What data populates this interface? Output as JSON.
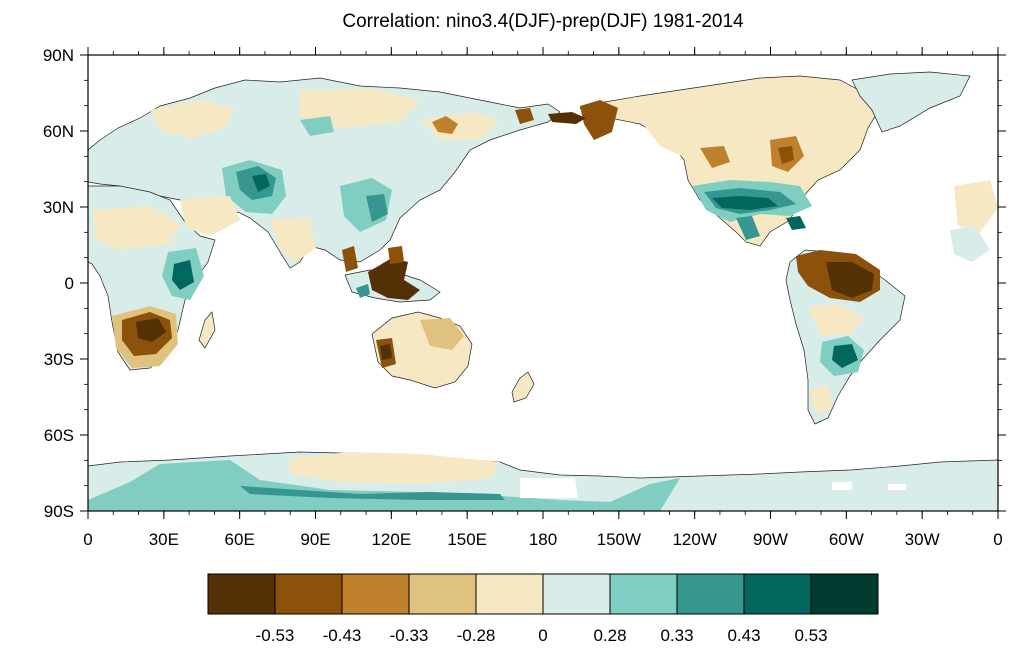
{
  "title": "Correlation: nino3.4(DJF)-prep(DJF) 1981-2014",
  "map": {
    "lon_ticks": [
      "0",
      "30E",
      "60E",
      "90E",
      "120E",
      "150E",
      "180",
      "150W",
      "120W",
      "90W",
      "60W",
      "30W",
      "0"
    ],
    "lat_ticks": [
      "90N",
      "60N",
      "30N",
      "0",
      "30S",
      "60S",
      "90S"
    ]
  },
  "colorbar": {
    "colors": [
      "#543005",
      "#8c510a",
      "#bf812d",
      "#dfc27d",
      "#f6e8c3",
      "#d8ece9",
      "#80cdc1",
      "#35978f",
      "#01665e",
      "#003c30"
    ],
    "labels": [
      "-0.53",
      "-0.43",
      "-0.33",
      "-0.28",
      "0",
      "0.28",
      "0.33",
      "0.43",
      "0.53"
    ]
  },
  "chart_data": {
    "type": "heatmap",
    "title": "Correlation: nino3.4(DJF)-prep(DJF) 1981-2014",
    "x_range": [
      0,
      360
    ],
    "y_range": [
      -90,
      90
    ],
    "levels": [
      -0.53,
      -0.43,
      -0.33,
      -0.28,
      0,
      0.28,
      0.33,
      0.43,
      0.53
    ]
  }
}
